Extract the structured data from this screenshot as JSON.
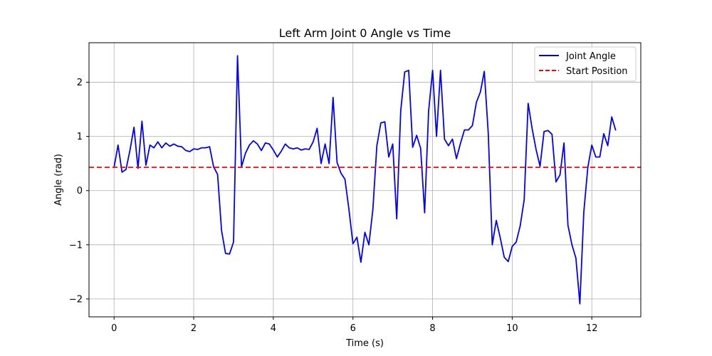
{
  "chart_data": {
    "type": "line",
    "title": "Left Arm Joint 0 Angle vs Time",
    "xlabel": "Time (s)",
    "ylabel": "Angle (rad)",
    "xlim": [
      -0.63,
      13.23
    ],
    "ylim": [
      -2.33,
      2.73
    ],
    "xticks": [
      0,
      2,
      4,
      6,
      8,
      10,
      12
    ],
    "xtick_labels": [
      "0",
      "2",
      "4",
      "6",
      "8",
      "10",
      "12"
    ],
    "yticks": [
      -2,
      -1,
      0,
      1,
      2
    ],
    "ytick_labels": [
      "−2",
      "−1",
      "0",
      "1",
      "2"
    ],
    "grid": true,
    "legend_position": "top-right",
    "series": [
      {
        "name": "Joint Angle",
        "color": "#0000ff",
        "style": "solid",
        "x": [
          0.0,
          0.1,
          0.2,
          0.3,
          0.4,
          0.5,
          0.6,
          0.7,
          0.8,
          0.9,
          1.0,
          1.1,
          1.2,
          1.3,
          1.4,
          1.5,
          1.6,
          1.7,
          1.8,
          1.9,
          2.0,
          2.1,
          2.2,
          2.3,
          2.4,
          2.5,
          2.6,
          2.7,
          2.8,
          2.9,
          3.0,
          3.1,
          3.2,
          3.3,
          3.4,
          3.5,
          3.6,
          3.7,
          3.8,
          3.9,
          4.0,
          4.1,
          4.2,
          4.3,
          4.4,
          4.5,
          4.6,
          4.7,
          4.8,
          4.9,
          5.0,
          5.1,
          5.2,
          5.3,
          5.4,
          5.5,
          5.6,
          5.7,
          5.8,
          5.9,
          6.0,
          6.1,
          6.2,
          6.3,
          6.4,
          6.5,
          6.6,
          6.7,
          6.8,
          6.9,
          7.0,
          7.1,
          7.2,
          7.3,
          7.4,
          7.5,
          7.6,
          7.7,
          7.8,
          7.9,
          8.0,
          8.1,
          8.2,
          8.3,
          8.4,
          8.5,
          8.6,
          8.7,
          8.8,
          8.9,
          9.0,
          9.1,
          9.2,
          9.3,
          9.4,
          9.5,
          9.6,
          9.7,
          9.8,
          9.9,
          10.0,
          10.1,
          10.2,
          10.3,
          10.4,
          10.5,
          10.6,
          10.7,
          10.8,
          10.9,
          11.0,
          11.1,
          11.2,
          11.3,
          11.4,
          11.5,
          11.6,
          11.7,
          11.8,
          11.9,
          12.0,
          12.1,
          12.2,
          12.3,
          12.4,
          12.5,
          12.6
        ],
        "y": [
          0.43,
          0.84,
          0.34,
          0.39,
          0.75,
          1.17,
          0.41,
          1.28,
          0.47,
          0.84,
          0.79,
          0.9,
          0.79,
          0.88,
          0.82,
          0.86,
          0.82,
          0.81,
          0.74,
          0.72,
          0.77,
          0.76,
          0.79,
          0.79,
          0.81,
          0.44,
          0.3,
          -0.74,
          -1.16,
          -1.17,
          -0.95,
          2.49,
          0.44,
          0.69,
          0.84,
          0.92,
          0.86,
          0.74,
          0.88,
          0.86,
          0.75,
          0.62,
          0.73,
          0.86,
          0.79,
          0.77,
          0.79,
          0.75,
          0.77,
          0.76,
          0.9,
          1.15,
          0.5,
          0.86,
          0.5,
          1.72,
          0.52,
          0.32,
          0.21,
          -0.35,
          -0.98,
          -0.86,
          -1.32,
          -0.77,
          -1.0,
          -0.35,
          0.83,
          1.25,
          1.27,
          0.62,
          0.86,
          -0.52,
          1.47,
          2.19,
          2.22,
          0.8,
          1.02,
          0.78,
          -0.41,
          1.47,
          2.22,
          1.0,
          2.22,
          0.95,
          0.83,
          0.95,
          0.59,
          0.87,
          1.12,
          1.12,
          1.2,
          1.63,
          1.82,
          2.2,
          1.05,
          -1.0,
          -0.55,
          -0.87,
          -1.23,
          -1.31,
          -1.03,
          -0.95,
          -0.65,
          -0.17,
          1.61,
          1.15,
          0.76,
          0.45,
          1.09,
          1.11,
          1.04,
          0.16,
          0.29,
          0.88,
          -0.64,
          -1.0,
          -1.25,
          -2.09,
          -0.39,
          0.43,
          0.84,
          0.62,
          0.62,
          1.05,
          0.83,
          1.36,
          1.11
        ]
      },
      {
        "name": "Start Position",
        "color": "#ff0000",
        "style": "dashed",
        "y_constant": 0.43
      }
    ]
  }
}
